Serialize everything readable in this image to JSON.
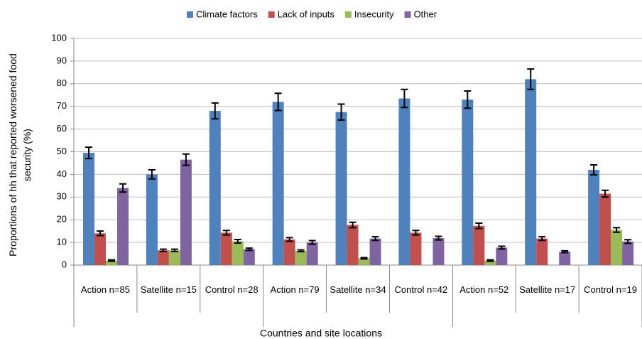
{
  "chart_data": {
    "type": "bar",
    "x_label": "Countries and site locations",
    "y_label": "Proportions of hh that reported worsened food security (%)",
    "categories": [
      "Action n=85",
      "Satellite n=15",
      "Control n=28",
      "Action n=79",
      "Satellite n=34",
      "Control n=42",
      "Action n=52",
      "Satellite n=17",
      "Control n=19"
    ],
    "series": [
      {
        "name": "Climate factors",
        "color": "#4f81bd",
        "values": [
          49.5,
          40,
          68,
          72,
          67.5,
          73.5,
          73,
          82,
          42
        ],
        "errors": [
          2.5,
          2,
          3.5,
          3.8,
          3.5,
          4,
          3.8,
          4.5,
          2.2
        ]
      },
      {
        "name": "Lack of inputs",
        "color": "#c0504d",
        "values": [
          14,
          6.5,
          14.3,
          11.3,
          17.7,
          14.3,
          17.3,
          11.7,
          31.5
        ],
        "errors": [
          1,
          0.5,
          1,
          0.8,
          1.2,
          1,
          1.2,
          0.8,
          1.5
        ]
      },
      {
        "name": "Insecurity",
        "color": "#9bbb59",
        "values": [
          2,
          6.5,
          10.5,
          6.3,
          3,
          null,
          2,
          null,
          15.5
        ],
        "errors": [
          0.3,
          0.5,
          0.8,
          0.4,
          0.3,
          null,
          0.3,
          null,
          1
        ]
      },
      {
        "name": "Other",
        "color": "#8064a2",
        "values": [
          34,
          46.5,
          7,
          10,
          11.7,
          11.9,
          7.7,
          5.9,
          10.4
        ],
        "errors": [
          1.8,
          2.5,
          0.5,
          0.8,
          0.8,
          0.8,
          0.6,
          0.4,
          0.8
        ]
      }
    ],
    "ylim": [
      0,
      100
    ],
    "yticks": [
      0,
      10,
      20,
      30,
      40,
      50,
      60,
      70,
      80,
      90,
      100
    ],
    "grid": true,
    "legend": "top"
  }
}
